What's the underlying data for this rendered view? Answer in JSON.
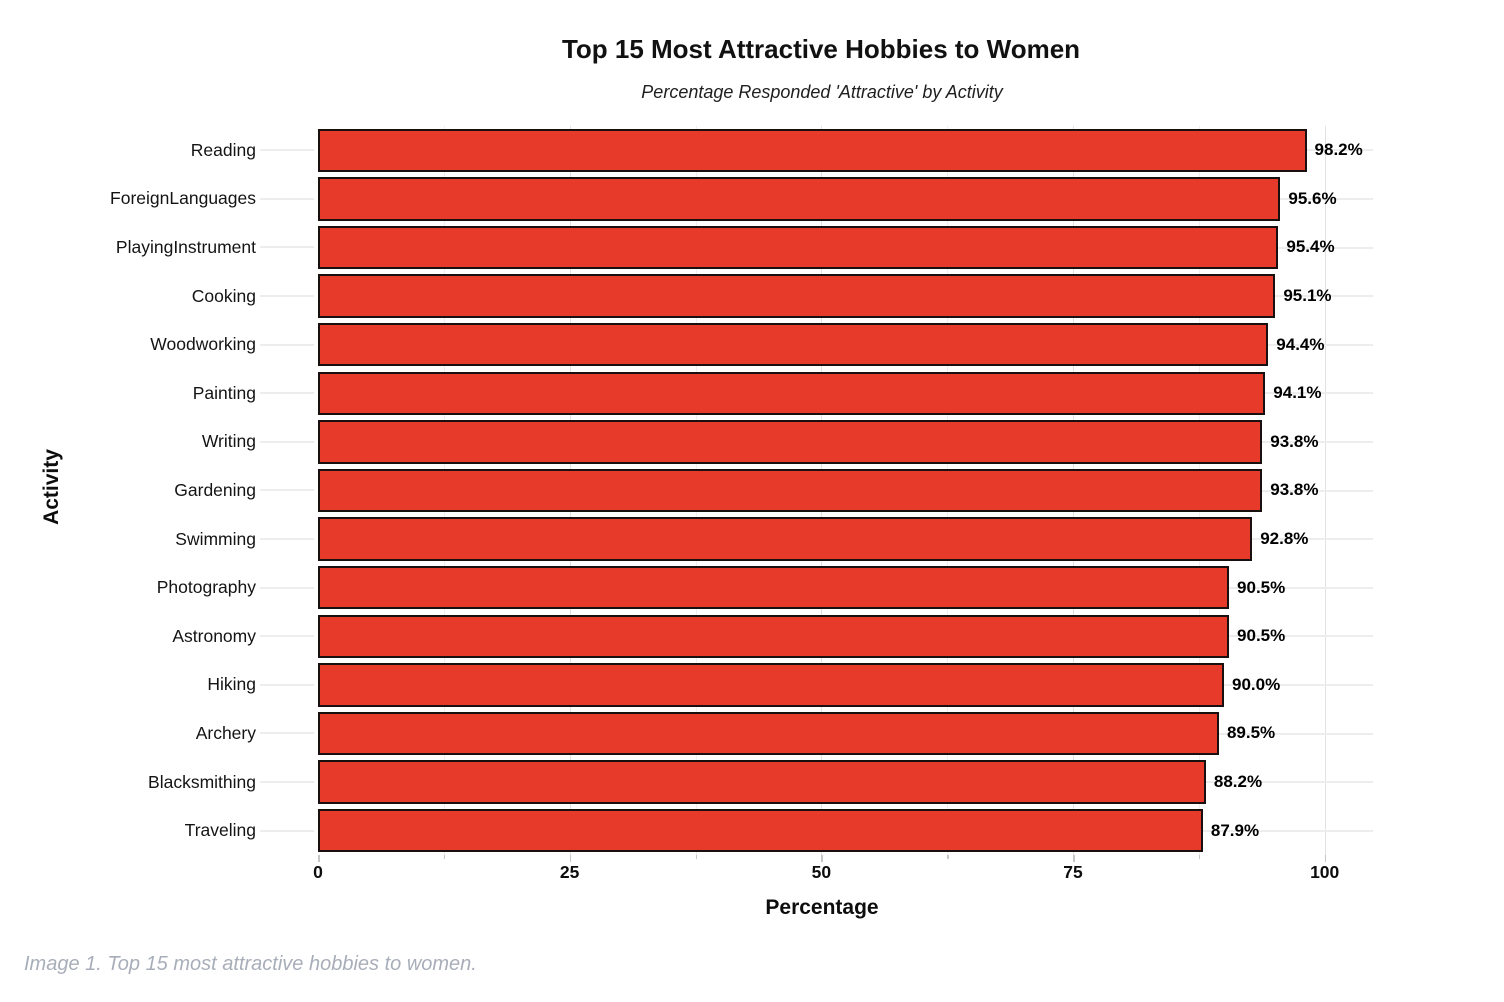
{
  "chart_data": {
    "type": "bar",
    "orientation": "horizontal",
    "title": "Top 15 Most Attractive Hobbies to Women",
    "subtitle": "Percentage Responded 'Attractive' by Activity",
    "xlabel": "Percentage",
    "ylabel": "Activity",
    "categories": [
      "Reading",
      "ForeignLanguages",
      "PlayingInstrument",
      "Cooking",
      "Woodworking",
      "Painting",
      "Writing",
      "Gardening",
      "Swimming",
      "Photography",
      "Astronomy",
      "Hiking",
      "Archery",
      "Blacksmithing",
      "Traveling"
    ],
    "values": [
      98.2,
      95.6,
      95.4,
      95.1,
      94.4,
      94.1,
      93.8,
      93.8,
      92.8,
      90.5,
      90.5,
      90.0,
      89.5,
      88.2,
      87.9
    ],
    "value_labels": [
      "98.2%",
      "95.6%",
      "95.4%",
      "95.1%",
      "94.4%",
      "94.1%",
      "93.8%",
      "93.8%",
      "92.8%",
      "90.5%",
      "90.5%",
      "90.0%",
      "89.5%",
      "88.2%",
      "87.9%"
    ],
    "xticks": [
      0,
      25,
      50,
      75,
      100
    ],
    "xtick_labels": [
      "0",
      "25",
      "50",
      "75",
      "100"
    ],
    "minor_xticks": [
      12.5,
      37.5,
      62.5,
      87.5
    ],
    "xlim": [
      0,
      104.8
    ],
    "grid": true,
    "legend": "none",
    "bar_color": "#e83a2a",
    "bar_border_color": "#18100e",
    "caption": "Image 1. Top 15 most attractive hobbies to women."
  }
}
